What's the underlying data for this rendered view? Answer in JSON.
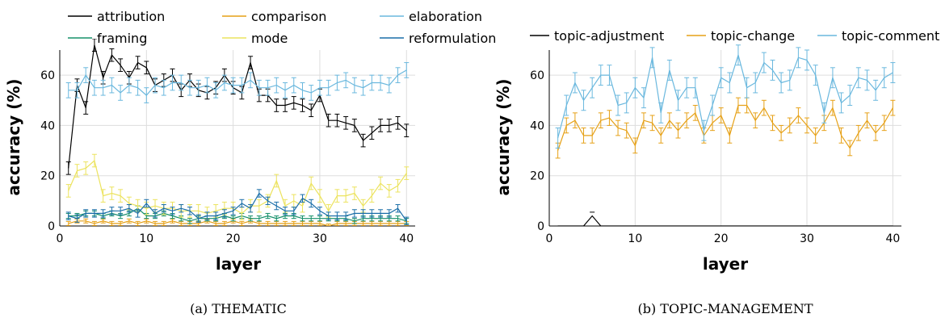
{
  "chart_data": [
    {
      "type": "line",
      "caption_prefix": "(a)",
      "caption_name": "THEMATIC",
      "xlabel": "layer",
      "ylabel": "accuracy (%)",
      "xlim": [
        0,
        41
      ],
      "ylim": [
        0,
        70
      ],
      "xticks": [
        0,
        10,
        20,
        30,
        40
      ],
      "yticks": [
        0,
        20,
        40,
        60
      ],
      "grid": true,
      "x": [
        1,
        2,
        3,
        4,
        5,
        6,
        7,
        8,
        9,
        10,
        11,
        12,
        13,
        14,
        15,
        16,
        17,
        18,
        19,
        20,
        21,
        22,
        23,
        24,
        25,
        26,
        27,
        28,
        29,
        30,
        31,
        32,
        33,
        34,
        35,
        36,
        37,
        38,
        39,
        40
      ],
      "series": [
        {
          "name": "attribution",
          "color": "#000000",
          "values": [
            23,
            56,
            47,
            72,
            59,
            68,
            64,
            59,
            65,
            63,
            56,
            58,
            60,
            54,
            58,
            54,
            53,
            55,
            60,
            55,
            53,
            65,
            52,
            52,
            48,
            48,
            49,
            48,
            46,
            52,
            42,
            42,
            41,
            40,
            34,
            37,
            40,
            40,
            41,
            38
          ],
          "err": 2.5
        },
        {
          "name": "comparison",
          "color": "#e6a117",
          "values": [
            1,
            2,
            2,
            1,
            2,
            1,
            1,
            2,
            1,
            2,
            1,
            1,
            2,
            1,
            1,
            1,
            2,
            1,
            1,
            2,
            1,
            2,
            1,
            1,
            1,
            1,
            1,
            1,
            1,
            1,
            0,
            1,
            1,
            1,
            1,
            1,
            1,
            1,
            1,
            1
          ],
          "err": 0.8
        },
        {
          "name": "elaboration",
          "color": "#6ab8de",
          "values": [
            54,
            54,
            60,
            55,
            55,
            56,
            53,
            56,
            55,
            52,
            56,
            55,
            57,
            57,
            55,
            55,
            56,
            54,
            57,
            56,
            56,
            58,
            55,
            55,
            56,
            54,
            56,
            54,
            53,
            55,
            55,
            57,
            58,
            56,
            55,
            57,
            57,
            56,
            60,
            62
          ],
          "err": 3
        },
        {
          "name": "framing",
          "color": "#16906a",
          "values": [
            4,
            4,
            5,
            5,
            4,
            5,
            4,
            5,
            7,
            4,
            4,
            5,
            4,
            3,
            2,
            3,
            3,
            3,
            4,
            3,
            4,
            3,
            3,
            4,
            3,
            4,
            4,
            3,
            3,
            3,
            3,
            3,
            3,
            2,
            3,
            3,
            3,
            3,
            3,
            2
          ],
          "err": 1
        },
        {
          "name": "mode",
          "color": "#ece35e",
          "values": [
            14,
            22,
            23,
            26,
            12,
            13,
            12,
            9,
            8,
            7,
            8,
            7,
            7,
            6,
            6,
            6,
            5,
            6,
            7,
            7,
            5,
            8,
            8,
            10,
            18,
            8,
            10,
            8,
            17,
            12,
            6,
            12,
            12,
            13,
            8,
            12,
            17,
            14,
            16,
            21
          ],
          "err": 2.5
        },
        {
          "name": "reformulation",
          "color": "#1a6ea8",
          "values": [
            4,
            3,
            5,
            5,
            5,
            6,
            6,
            7,
            5,
            9,
            5,
            7,
            6,
            7,
            6,
            3,
            4,
            4,
            5,
            6,
            9,
            7,
            13,
            10,
            8,
            6,
            6,
            11,
            9,
            6,
            4,
            4,
            4,
            5,
            5,
            5,
            5,
            5,
            7,
            2
          ],
          "err": 1.5
        }
      ],
      "legend": [
        "attribution",
        "comparison",
        "elaboration",
        "framing",
        "mode",
        "reformulation"
      ],
      "legend_placement": "top"
    },
    {
      "type": "line",
      "caption_prefix": "(b)",
      "caption_name": "TOPIC-MANAGEMENT",
      "xlabel": "layer",
      "ylabel": "accuracy (%)",
      "xlim": [
        0,
        41
      ],
      "ylim": [
        0,
        70
      ],
      "xticks": [
        0,
        10,
        20,
        30,
        40
      ],
      "yticks": [
        0,
        20,
        40,
        60
      ],
      "grid": true,
      "x": [
        1,
        2,
        3,
        4,
        5,
        6,
        7,
        8,
        9,
        10,
        11,
        12,
        13,
        14,
        15,
        16,
        17,
        18,
        19,
        20,
        21,
        22,
        23,
        24,
        25,
        26,
        27,
        28,
        29,
        30,
        31,
        32,
        33,
        34,
        35,
        36,
        37,
        38,
        39,
        40
      ],
      "series": [
        {
          "name": "topic-adjustment",
          "color": "#000000",
          "values": [
            0,
            0,
            0,
            0,
            4,
            0,
            0,
            0,
            0,
            0,
            0,
            0,
            0,
            0,
            0,
            0,
            0,
            0,
            0,
            0,
            0,
            0,
            0,
            0,
            0,
            0,
            0,
            0,
            0,
            0,
            0,
            0,
            0,
            0,
            0,
            0,
            0,
            0,
            0,
            0
          ],
          "err": 0
        },
        {
          "name": "topic-change",
          "color": "#e6a117",
          "values": [
            30,
            40,
            42,
            36,
            36,
            42,
            43,
            39,
            38,
            32,
            42,
            41,
            36,
            42,
            38,
            42,
            45,
            36,
            41,
            44,
            36,
            48,
            48,
            42,
            47,
            41,
            37,
            40,
            44,
            40,
            36,
            41,
            47,
            36,
            31,
            37,
            42,
            37,
            41,
            47
          ],
          "err": 3
        },
        {
          "name": "topic-comment",
          "color": "#6ab8de",
          "values": [
            35,
            48,
            57,
            50,
            55,
            60,
            60,
            48,
            49,
            55,
            51,
            67,
            45,
            62,
            50,
            55,
            55,
            38,
            48,
            59,
            57,
            68,
            55,
            57,
            65,
            62,
            57,
            58,
            67,
            66,
            60,
            45,
            59,
            49,
            52,
            59,
            58,
            54,
            59,
            61
          ],
          "err": 4
        }
      ],
      "legend": [
        "topic-adjustment",
        "topic-change",
        "topic-comment"
      ],
      "legend_placement": "top"
    }
  ]
}
